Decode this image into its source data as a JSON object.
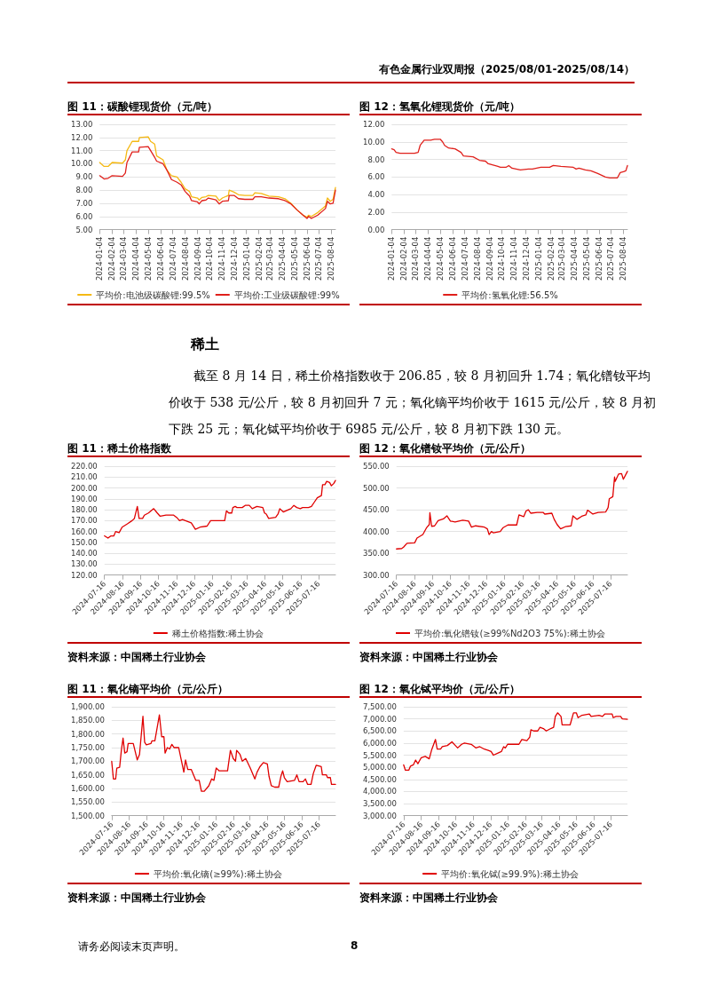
{
  "chart_data": [
    {
      "type": "line",
      "title": "图 11：碳酸锂现货价（元/吨）",
      "annotations": [
        "有色金属行业双周报（2025/08/01-2025/08/14）"
      ],
      "grid": "y",
      "legend": "bottom",
      "x": [
        "2024-01-04",
        "2024-01-15",
        "2024-01-25",
        "2024-02-04",
        "2024-03-01",
        "2024-03-08",
        "2024-03-12",
        "2024-03-25",
        "2024-04-10",
        "2024-04-12",
        "2024-05-04",
        "2024-05-10",
        "2024-05-20",
        "2024-05-25",
        "2024-06-10",
        "2024-06-20",
        "2024-07-01",
        "2024-07-15",
        "2024-07-25",
        "2024-08-04",
        "2024-08-15",
        "2024-08-20",
        "2024-09-04",
        "2024-09-08",
        "2024-09-15",
        "2024-09-25",
        "2024-10-01",
        "2024-10-20",
        "2024-10-28",
        "2024-11-05",
        "2024-11-20",
        "2024-11-22",
        "2024-12-04",
        "2024-12-15",
        "2024-12-31",
        "2025-01-20",
        "2025-01-25",
        "2025-02-10",
        "2025-03-01",
        "2025-03-25",
        "2025-04-10",
        "2025-04-25",
        "2025-05-10",
        "2025-05-25",
        "2025-06-04",
        "2025-06-08",
        "2025-06-15",
        "2025-07-01",
        "2025-07-20",
        "2025-07-25",
        "2025-08-01",
        "2025-08-08",
        "2025-08-14"
      ],
      "series": [
        {
          "name": "平均价:电池级碳酸锂:99.5%",
          "color": "#f5b914",
          "values": [
            10.1,
            9.8,
            9.8,
            10.1,
            10.05,
            10.3,
            11.0,
            11.7,
            11.7,
            12.0,
            12.05,
            11.7,
            11.5,
            10.6,
            10.3,
            9.5,
            9.1,
            9.0,
            8.6,
            8.1,
            7.9,
            7.5,
            7.4,
            7.25,
            7.45,
            7.5,
            7.6,
            7.55,
            7.2,
            7.4,
            7.6,
            8.0,
            7.85,
            7.65,
            7.6,
            7.6,
            7.8,
            7.75,
            7.55,
            7.5,
            7.35,
            7.0,
            6.5,
            6.1,
            5.95,
            6.1,
            6.0,
            6.3,
            6.8,
            7.4,
            7.15,
            7.3,
            8.2
          ]
        },
        {
          "name": "平均价:工业级碳酸锂:99%",
          "color": "#e0201b",
          "values": [
            9.1,
            8.85,
            8.9,
            9.1,
            9.05,
            9.3,
            10.1,
            10.9,
            10.9,
            11.25,
            11.3,
            11.0,
            10.5,
            10.2,
            10.0,
            9.5,
            8.8,
            8.6,
            8.4,
            7.9,
            7.55,
            7.2,
            7.1,
            6.95,
            7.2,
            7.25,
            7.4,
            7.25,
            6.95,
            7.15,
            7.2,
            7.6,
            7.6,
            7.35,
            7.3,
            7.3,
            7.5,
            7.5,
            7.4,
            7.35,
            7.2,
            6.95,
            6.5,
            6.1,
            5.85,
            6.0,
            5.85,
            6.1,
            6.6,
            7.15,
            6.95,
            7.0,
            8.0
          ]
        }
      ],
      "xlim": [
        "2024-01-04",
        "2025-08-14"
      ],
      "xticks": [
        "2024-01-04",
        "2024-02-04",
        "2024-03-04",
        "2024-04-04",
        "2024-05-04",
        "2024-06-04",
        "2024-07-04",
        "2024-08-04",
        "2024-09-04",
        "2024-10-04",
        "2024-11-04",
        "2024-12-04",
        "2025-01-04",
        "2025-02-04",
        "2025-03-04",
        "2025-04-04",
        "2025-05-04",
        "2025-06-04",
        "2025-07-04",
        "2025-08-04"
      ],
      "ylim": [
        5,
        13
      ],
      "yticks": [
        {
          "value": 5,
          "label": "5.00"
        },
        {
          "value": 6,
          "label": "6.00"
        },
        {
          "value": 7,
          "label": "7.00"
        },
        {
          "value": 8,
          "label": "8.00"
        },
        {
          "value": 9,
          "label": "9.00"
        },
        {
          "value": 10,
          "label": "10.00"
        },
        {
          "value": 11,
          "label": "11.00"
        },
        {
          "value": 12,
          "label": "12.00"
        },
        {
          "value": 13,
          "label": "13.00"
        }
      ]
    },
    {
      "type": "line",
      "title": "图 12：氢氧化锂现货价（元/吨）",
      "grid": "y",
      "legend": "bottom",
      "x": [
        "2024-01-04",
        "2024-01-10",
        "2024-01-15",
        "2024-01-25",
        "2024-03-01",
        "2024-03-10",
        "2024-03-15",
        "2024-03-25",
        "2024-04-10",
        "2024-04-20",
        "2024-05-04",
        "2024-05-10",
        "2024-05-15",
        "2024-05-25",
        "2024-06-10",
        "2024-06-25",
        "2024-07-01",
        "2024-07-25",
        "2024-08-10",
        "2024-08-25",
        "2024-09-01",
        "2024-09-25",
        "2024-10-01",
        "2024-10-15",
        "2024-10-22",
        "2024-10-30",
        "2024-11-20",
        "2024-12-10",
        "2024-12-20",
        "2025-01-10",
        "2025-02-01",
        "2025-02-10",
        "2025-03-01",
        "2025-04-01",
        "2025-04-08",
        "2025-04-15",
        "2025-05-01",
        "2025-05-15",
        "2025-06-01",
        "2025-06-20",
        "2025-07-01",
        "2025-07-20",
        "2025-07-27",
        "2025-08-04",
        "2025-08-10",
        "2025-08-14"
      ],
      "series": [
        {
          "name": "平均价:氢氧化锂:56.5%",
          "color": "#e0201b",
          "values": [
            9.2,
            9.1,
            8.8,
            8.7,
            8.7,
            8.8,
            9.6,
            10.2,
            10.2,
            10.3,
            10.3,
            10.0,
            9.6,
            9.3,
            9.2,
            8.8,
            8.4,
            8.3,
            7.9,
            7.8,
            7.5,
            7.2,
            7.1,
            7.1,
            7.3,
            7.0,
            6.8,
            6.9,
            6.9,
            7.1,
            7.1,
            7.3,
            7.2,
            7.1,
            6.9,
            7.0,
            6.8,
            6.7,
            6.4,
            6.0,
            5.9,
            5.9,
            6.5,
            6.6,
            6.7,
            7.3
          ]
        }
      ],
      "xlim": [
        "2024-01-04",
        "2025-08-14"
      ],
      "xticks": [
        "2024-01-04",
        "2024-02-04",
        "2024-03-04",
        "2024-04-04",
        "2024-05-04",
        "2024-06-04",
        "2024-07-04",
        "2024-08-04",
        "2024-09-04",
        "2024-10-04",
        "2024-11-04",
        "2024-12-04",
        "2025-01-04",
        "2025-02-04",
        "2025-03-04",
        "2025-04-04",
        "2025-05-04",
        "2025-06-04",
        "2025-07-04",
        "2025-08-04"
      ],
      "ylim": [
        0,
        12
      ],
      "yticks": [
        {
          "value": 0,
          "label": "0.00"
        },
        {
          "value": 2,
          "label": "2.00"
        },
        {
          "value": 4,
          "label": "4.00"
        },
        {
          "value": 6,
          "label": "6.00"
        },
        {
          "value": 8,
          "label": "8.00"
        },
        {
          "value": 10,
          "label": "10.00"
        },
        {
          "value": 12,
          "label": "12.00"
        }
      ]
    },
    {
      "type": "line",
      "title": "图 11：稀土价格指数",
      "annotations": [
        "稀土",
        "截至 8 月 14 日，稀土价格指数收于 206.85，较 8 月初回升 1.74；氧化镨钕平均价收于 538 元/公斤，较 8 月初回升 7 元；氧化镝平均价收于 1615 元/公斤，较 8 月初下跌 25 元；氧化铽平均价收于 6985 元/公斤，较 8 月初下跌 130 元。",
        "资料来源：中国稀土行业协会"
      ],
      "grid": "y",
      "legend": "bottom",
      "x": [
        "2024-07-16",
        "2024-07-22",
        "2024-07-27",
        "2024-08-01",
        "2024-08-04",
        "2024-08-10",
        "2024-08-15",
        "2024-08-24",
        "2024-09-01",
        "2024-09-05",
        "2024-09-10",
        "2024-09-13",
        "2024-09-19",
        "2024-09-22",
        "2024-09-29",
        "2024-10-08",
        "2024-10-14",
        "2024-10-19",
        "2024-10-29",
        "2024-11-11",
        "2024-11-16",
        "2024-11-21",
        "2024-11-26",
        "2024-12-01",
        "2024-12-11",
        "2024-12-18",
        "2024-12-26",
        "2025-01-07",
        "2025-01-13",
        "2025-01-25",
        "2025-02-06",
        "2025-02-09",
        "2025-02-13",
        "2025-02-18",
        "2025-02-20",
        "2025-02-24",
        "2025-02-27",
        "2025-03-08",
        "2025-03-13",
        "2025-03-20",
        "2025-03-25",
        "2025-04-02",
        "2025-04-12",
        "2025-04-15",
        "2025-04-18",
        "2025-04-22",
        "2025-05-04",
        "2025-05-08",
        "2025-05-11",
        "2025-05-17",
        "2025-05-30",
        "2025-06-04",
        "2025-06-09",
        "2025-06-15",
        "2025-06-19",
        "2025-06-29",
        "2025-07-04",
        "2025-07-09",
        "2025-07-14",
        "2025-07-21",
        "2025-07-23",
        "2025-07-27",
        "2025-07-30",
        "2025-08-04",
        "2025-08-07",
        "2025-08-11",
        "2025-08-14"
      ],
      "series": [
        {
          "name": "稀土价格指数:稀土协会",
          "color": "#e00000",
          "values": [
            156,
            154,
            156,
            156,
            160,
            159,
            164,
            167,
            170,
            172,
            183,
            172,
            172,
            175,
            177,
            181,
            177,
            174,
            175,
            175,
            173,
            170,
            171,
            170,
            168,
            162,
            164,
            165,
            170,
            170,
            170,
            179,
            177,
            177,
            182,
            183,
            182,
            182,
            184,
            184,
            181,
            183,
            182,
            177,
            176,
            172,
            173,
            176,
            181,
            178,
            181,
            184,
            182,
            181,
            182,
            182,
            183,
            187,
            191,
            193,
            203,
            203,
            206,
            205,
            202,
            204,
            206.85
          ]
        }
      ],
      "xlim": [
        "2024-07-16",
        "2025-08-14"
      ],
      "xticks": [
        "2024-07-16",
        "2024-08-16",
        "2024-09-16",
        "2024-10-16",
        "2024-11-16",
        "2024-12-16",
        "2025-01-16",
        "2025-02-16",
        "2025-03-16",
        "2025-04-16",
        "2025-05-16",
        "2025-06-16",
        "2025-07-16"
      ],
      "ylim": [
        120,
        220
      ],
      "yticks": [
        {
          "value": 120,
          "label": "120.00"
        },
        {
          "value": 130,
          "label": "130.00"
        },
        {
          "value": 140,
          "label": "140.00"
        },
        {
          "value": 150,
          "label": "150.00"
        },
        {
          "value": 160,
          "label": "160.00"
        },
        {
          "value": 170,
          "label": "170.00"
        },
        {
          "value": 180,
          "label": "180.00"
        },
        {
          "value": 190,
          "label": "190.00"
        },
        {
          "value": 200,
          "label": "200.00"
        },
        {
          "value": 210,
          "label": "210.00"
        },
        {
          "value": 220,
          "label": "220.00"
        }
      ]
    },
    {
      "type": "line",
      "title": "图 12：氧化镨钕平均价（元/公斤）",
      "annotations": [
        "资料来源：中国稀土行业协会"
      ],
      "grid": "y",
      "legend": "bottom",
      "x": [
        "2024-07-16",
        "2024-07-25",
        "2024-07-28",
        "2024-08-03",
        "2024-08-16",
        "2024-08-20",
        "2024-08-30",
        "2024-09-05",
        "2024-09-10",
        "2024-09-11",
        "2024-09-14",
        "2024-09-19",
        "2024-09-25",
        "2024-10-04",
        "2024-10-10",
        "2024-10-16",
        "2024-10-24",
        "2024-11-06",
        "2024-11-16",
        "2024-11-21",
        "2024-11-28",
        "2024-12-13",
        "2024-12-18",
        "2024-12-21",
        "2024-12-25",
        "2024-12-28",
        "2025-01-09",
        "2025-01-14",
        "2025-01-22",
        "2025-02-06",
        "2025-02-10",
        "2025-02-18",
        "2025-02-22",
        "2025-02-26",
        "2025-03-02",
        "2025-03-13",
        "2025-03-23",
        "2025-03-26",
        "2025-04-07",
        "2025-04-11",
        "2025-04-16",
        "2025-04-22",
        "2025-04-30",
        "2025-05-10",
        "2025-05-13",
        "2025-05-20",
        "2025-05-28",
        "2025-06-04",
        "2025-06-07",
        "2025-06-16",
        "2025-06-25",
        "2025-07-08",
        "2025-07-12",
        "2025-07-14",
        "2025-07-20",
        "2025-07-23",
        "2025-07-24",
        "2025-07-30",
        "2025-08-04",
        "2025-08-07",
        "2025-08-14"
      ],
      "series": [
        {
          "name": "平均价:氧化镨钕(≥99%Nd2O3 75%):稀土协会",
          "color": "#e00000",
          "values": [
            360,
            361,
            364,
            373,
            374,
            385,
            393,
            408,
            416,
            443,
            412,
            413,
            425,
            429,
            436,
            424,
            422,
            426,
            424,
            410,
            413,
            410,
            406,
            393,
            400,
            397,
            400,
            409,
            415,
            415,
            438,
            434,
            447,
            450,
            442,
            444,
            444,
            440,
            442,
            428,
            416,
            406,
            411,
            413,
            436,
            428,
            435,
            438,
            449,
            440,
            444,
            445,
            455,
            475,
            480,
            525,
            515,
            532,
            533,
            520,
            538
          ]
        }
      ],
      "xlim": [
        "2024-07-16",
        "2025-08-14"
      ],
      "xticks": [
        "2024-07-16",
        "2024-08-16",
        "2024-09-16",
        "2024-10-16",
        "2024-11-16",
        "2024-12-16",
        "2025-01-16",
        "2025-02-16",
        "2025-03-16",
        "2025-04-16",
        "2025-05-16",
        "2025-06-16",
        "2025-07-16"
      ],
      "ylim": [
        300,
        550
      ],
      "yticks": [
        {
          "value": 300,
          "label": "300.00"
        },
        {
          "value": 350,
          "label": "350.00"
        },
        {
          "value": 400,
          "label": "400.00"
        },
        {
          "value": 450,
          "label": "450.00"
        },
        {
          "value": 500,
          "label": "500.00"
        },
        {
          "value": 550,
          "label": "550.00"
        }
      ]
    },
    {
      "type": "line",
      "title": "图 11：氧化镝平均价（元/公斤）",
      "annotations": [
        "资料来源：中国稀土行业协会"
      ],
      "grid": "y",
      "legend": "bottom",
      "x": [
        "2024-07-16",
        "2024-07-19",
        "2024-07-23",
        "2024-07-25",
        "2024-07-30",
        "2024-08-02",
        "2024-08-05",
        "2024-08-08",
        "2024-08-12",
        "2024-08-14",
        "2024-08-23",
        "2024-08-30",
        "2024-09-03",
        "2024-09-09",
        "2024-09-12",
        "2024-09-15",
        "2024-09-23",
        "2024-09-25",
        "2024-09-30",
        "2024-10-08",
        "2024-10-12",
        "2024-10-16",
        "2024-10-18",
        "2024-10-22",
        "2024-10-26",
        "2024-10-30",
        "2024-11-03",
        "2024-11-11",
        "2024-11-16",
        "2024-11-20",
        "2024-11-23",
        "2024-11-27",
        "2024-12-03",
        "2024-12-11",
        "2024-12-17",
        "2024-12-21",
        "2024-12-26",
        "2025-01-03",
        "2025-01-08",
        "2025-01-12",
        "2025-01-16",
        "2025-01-21",
        "2025-02-05",
        "2025-02-10",
        "2025-02-15",
        "2025-02-19",
        "2025-02-21",
        "2025-02-27",
        "2025-03-03",
        "2025-03-09",
        "2025-03-17",
        "2025-03-25",
        "2025-03-29",
        "2025-04-03",
        "2025-04-09",
        "2025-04-16",
        "2025-04-19",
        "2025-04-23",
        "2025-04-29",
        "2025-05-06",
        "2025-05-10",
        "2025-05-13",
        "2025-05-16",
        "2025-05-21",
        "2025-06-03",
        "2025-06-07",
        "2025-06-11",
        "2025-06-18",
        "2025-06-22",
        "2025-06-26",
        "2025-07-02",
        "2025-07-06",
        "2025-07-11",
        "2025-07-20",
        "2025-07-22",
        "2025-07-29",
        "2025-07-31",
        "2025-08-05",
        "2025-08-07",
        "2025-08-14"
      ],
      "series": [
        {
          "name": "平均价:氧化镝(≥99%):稀土协会",
          "color": "#e00000",
          "values": [
            1700,
            1635,
            1635,
            1675,
            1678,
            1740,
            1785,
            1730,
            1735,
            1765,
            1765,
            1705,
            1725,
            1865,
            1770,
            1760,
            1765,
            1775,
            1775,
            1870,
            1790,
            1790,
            1730,
            1750,
            1745,
            1762,
            1750,
            1750,
            1700,
            1660,
            1705,
            1670,
            1670,
            1630,
            1630,
            1590,
            1590,
            1610,
            1635,
            1630,
            1675,
            1665,
            1665,
            1740,
            1710,
            1700,
            1740,
            1725,
            1700,
            1710,
            1675,
            1635,
            1660,
            1680,
            1695,
            1690,
            1645,
            1610,
            1605,
            1605,
            1645,
            1665,
            1640,
            1625,
            1630,
            1650,
            1625,
            1625,
            1635,
            1615,
            1615,
            1655,
            1685,
            1680,
            1650,
            1650,
            1640,
            1640,
            1615,
            1615
          ]
        }
      ],
      "xlim": [
        "2024-07-16",
        "2025-08-14"
      ],
      "xticks": [
        "2024-07-16",
        "2024-08-16",
        "2024-09-16",
        "2024-10-16",
        "2024-11-16",
        "2024-12-16",
        "2025-01-16",
        "2025-02-16",
        "2025-03-16",
        "2025-04-16",
        "2025-05-16",
        "2025-06-16",
        "2025-07-16"
      ],
      "ylim": [
        1500,
        1900
      ],
      "yticks": [
        {
          "value": 1500,
          "label": "1,500.00"
        },
        {
          "value": 1550,
          "label": "1,550.00"
        },
        {
          "value": 1600,
          "label": "1,600.00"
        },
        {
          "value": 1650,
          "label": "1,650.00"
        },
        {
          "value": 1700,
          "label": "1,700.00"
        },
        {
          "value": 1750,
          "label": "1,750.00"
        },
        {
          "value": 1800,
          "label": "1,800.00"
        },
        {
          "value": 1850,
          "label": "1,850.00"
        },
        {
          "value": 1900,
          "label": "1,900.00"
        }
      ]
    },
    {
      "type": "line",
      "title": "图 12：氧化铽平均价（元/公斤）",
      "annotations": [
        "资料来源：中国稀土行业协会",
        "请务必阅读末页声明。",
        "8"
      ],
      "grid": "y",
      "legend": "bottom",
      "x": [
        "2024-07-16",
        "2024-07-19",
        "2024-07-25",
        "2024-07-28",
        "2024-08-02",
        "2024-08-06",
        "2024-08-10",
        "2024-08-16",
        "2024-08-23",
        "2024-08-30",
        "2024-09-03",
        "2024-09-10",
        "2024-09-13",
        "2024-09-19",
        "2024-09-22",
        "2024-10-01",
        "2024-10-09",
        "2024-10-15",
        "2024-10-19",
        "2024-10-26",
        "2024-10-31",
        "2024-11-12",
        "2024-11-20",
        "2024-11-27",
        "2024-12-05",
        "2024-12-12",
        "2024-12-17",
        "2024-12-21",
        "2024-12-30",
        "2025-01-04",
        "2025-01-08",
        "2025-01-11",
        "2025-01-15",
        "2025-02-04",
        "2025-02-09",
        "2025-02-18",
        "2025-02-23",
        "2025-02-25",
        "2025-03-02",
        "2025-03-09",
        "2025-03-13",
        "2025-03-19",
        "2025-03-24",
        "2025-04-01",
        "2025-04-06",
        "2025-04-09",
        "2025-04-13",
        "2025-04-19",
        "2025-04-21",
        "2025-05-05",
        "2025-05-11",
        "2025-05-16",
        "2025-05-19",
        "2025-05-26",
        "2025-06-08",
        "2025-06-11",
        "2025-06-25",
        "2025-07-01",
        "2025-07-05",
        "2025-07-18",
        "2025-07-20",
        "2025-07-25",
        "2025-08-02",
        "2025-08-05",
        "2025-08-14"
      ],
      "series": [
        {
          "name": "平均价:氧化铽(≥99.9%):稀土协会",
          "color": "#e00000",
          "values": [
            5100,
            4880,
            4880,
            5050,
            5100,
            5300,
            5150,
            5400,
            5450,
            5350,
            5700,
            6150,
            5750,
            5750,
            5850,
            5900,
            6050,
            5900,
            5800,
            5950,
            6000,
            5950,
            5800,
            5850,
            5750,
            5700,
            5650,
            5500,
            5600,
            5650,
            5850,
            5800,
            5950,
            5950,
            6150,
            6100,
            6250,
            6550,
            6500,
            6500,
            6650,
            6600,
            6500,
            6600,
            6650,
            7100,
            7250,
            7100,
            6750,
            6750,
            7250,
            7250,
            7050,
            7150,
            7200,
            7100,
            7150,
            7100,
            7200,
            7200,
            7050,
            7100,
            7100,
            7000,
            6985
          ]
        }
      ],
      "xlim": [
        "2024-07-16",
        "2025-08-14"
      ],
      "xticks": [
        "2024-07-16",
        "2024-08-16",
        "2024-09-16",
        "2024-10-16",
        "2024-11-16",
        "2024-12-16",
        "2025-01-16",
        "2025-02-16",
        "2025-03-16",
        "2025-04-16",
        "2025-05-16",
        "2025-06-16",
        "2025-07-16"
      ],
      "ylim": [
        3000,
        7500
      ],
      "yticks": [
        {
          "value": 3000,
          "label": "3,000.00"
        },
        {
          "value": 3500,
          "label": "3,500.00"
        },
        {
          "value": 4000,
          "label": "4,000.00"
        },
        {
          "value": 4500,
          "label": "4,500.00"
        },
        {
          "value": 5000,
          "label": "5,000.00"
        },
        {
          "value": 5500,
          "label": "5,500.00"
        },
        {
          "value": 6000,
          "label": "6,000.00"
        },
        {
          "value": 6500,
          "label": "6,500.00"
        },
        {
          "value": 7000,
          "label": "7,000.00"
        },
        {
          "value": 7500,
          "label": "7,500.00"
        }
      ]
    }
  ]
}
